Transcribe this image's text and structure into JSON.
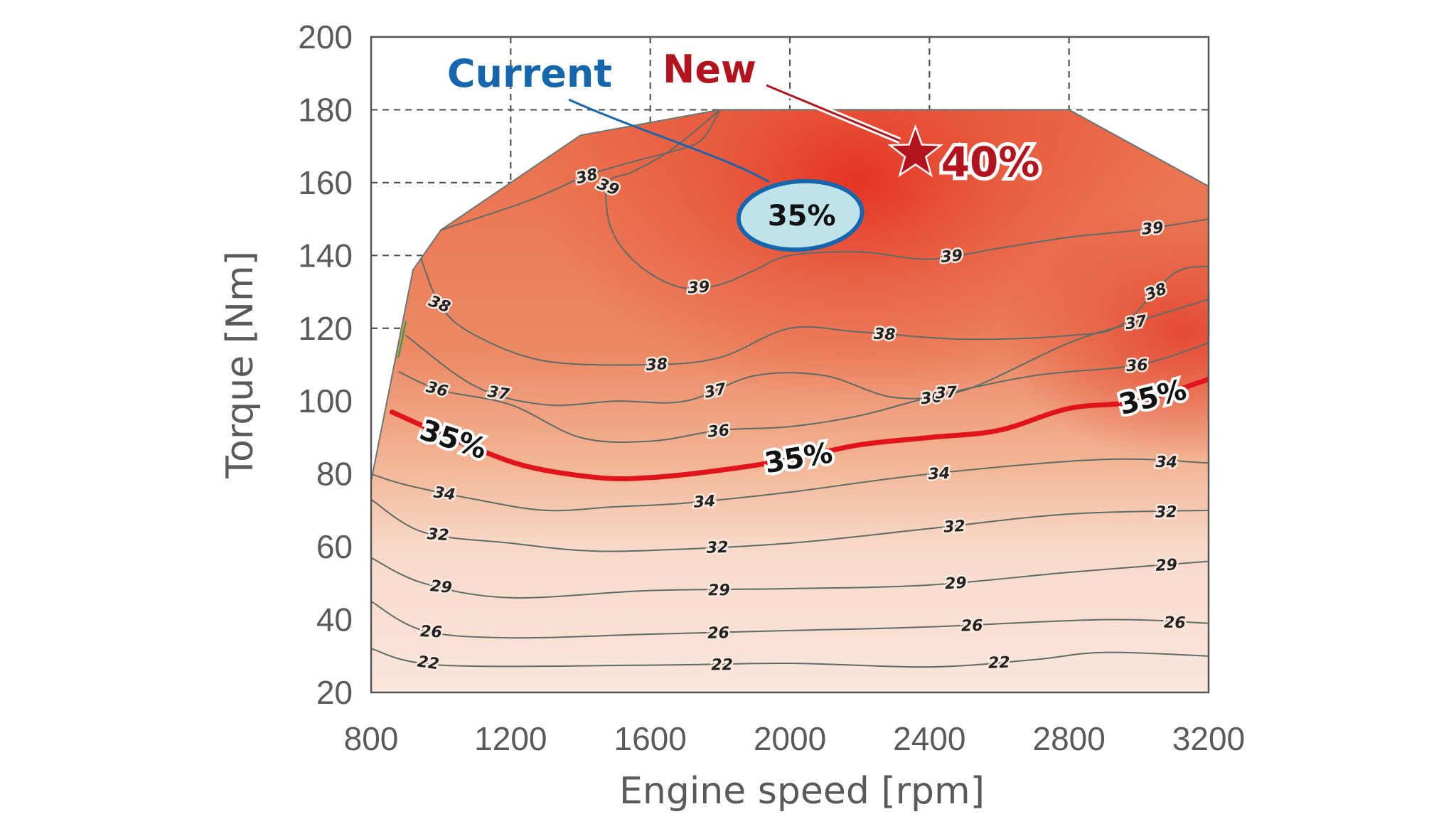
{
  "chart_data": {
    "type": "contour",
    "title": "",
    "xlabel": "Engine speed [rpm]",
    "ylabel": "Torque [Nm]",
    "xlim": [
      800,
      3200
    ],
    "ylim": [
      20,
      200
    ],
    "x_ticks": [
      "800",
      "1200",
      "1600",
      "2000",
      "2400",
      "2800",
      "3200"
    ],
    "y_ticks": [
      "20",
      "40",
      "60",
      "80",
      "100",
      "120",
      "140",
      "160",
      "180",
      "200"
    ],
    "operating_envelope": [
      [
        800,
        78
      ],
      [
        920,
        136
      ],
      [
        1000,
        147
      ],
      [
        1400,
        173
      ],
      [
        1800,
        180
      ],
      [
        2800,
        180
      ],
      [
        3200,
        159
      ],
      [
        3200,
        20
      ],
      [
        800,
        20
      ]
    ],
    "contours": [
      {
        "label": "22",
        "points": [
          [
            800,
            32
          ],
          [
            1000,
            27.5
          ],
          [
            1600,
            27.5
          ],
          [
            2000,
            28
          ],
          [
            2400,
            27
          ],
          [
            2700,
            29
          ],
          [
            2900,
            31
          ],
          [
            3200,
            30
          ]
        ]
      },
      {
        "label": "26",
        "points": [
          [
            800,
            45
          ],
          [
            950,
            37
          ],
          [
            1200,
            35
          ],
          [
            1600,
            36
          ],
          [
            2000,
            37
          ],
          [
            2400,
            38
          ],
          [
            2900,
            40
          ],
          [
            3200,
            39
          ]
        ]
      },
      {
        "label": "29",
        "points": [
          [
            800,
            57
          ],
          [
            950,
            50
          ],
          [
            1200,
            46
          ],
          [
            1600,
            48
          ],
          [
            2000,
            48.5
          ],
          [
            2400,
            49.5
          ],
          [
            2800,
            53
          ],
          [
            3200,
            56
          ]
        ]
      },
      {
        "label": "32",
        "points": [
          [
            800,
            73
          ],
          [
            950,
            64
          ],
          [
            1200,
            61
          ],
          [
            1400,
            59
          ],
          [
            1600,
            59
          ],
          [
            2000,
            61
          ],
          [
            2400,
            65
          ],
          [
            2800,
            69
          ],
          [
            3200,
            70
          ]
        ]
      },
      {
        "label": "34",
        "points": [
          [
            800,
            80
          ],
          [
            900,
            77
          ],
          [
            1100,
            73
          ],
          [
            1300,
            70
          ],
          [
            1500,
            71
          ],
          [
            1700,
            72
          ],
          [
            2000,
            75
          ],
          [
            2400,
            80
          ],
          [
            2900,
            84
          ],
          [
            3200,
            83
          ]
        ]
      },
      {
        "label": "35%",
        "highlight": true,
        "points": [
          [
            860,
            97
          ],
          [
            1000,
            91
          ],
          [
            1100,
            87
          ],
          [
            1250,
            82
          ],
          [
            1450,
            79
          ],
          [
            1600,
            79
          ],
          [
            1800,
            81
          ],
          [
            2000,
            84
          ],
          [
            2200,
            88
          ],
          [
            2400,
            90
          ],
          [
            2600,
            92
          ],
          [
            2800,
            98
          ],
          [
            3000,
            100
          ],
          [
            3200,
            106
          ]
        ]
      },
      {
        "label": "36",
        "points": [
          [
            880,
            108
          ],
          [
            1000,
            103
          ],
          [
            1200,
            99
          ],
          [
            1400,
            90
          ],
          [
            1600,
            89
          ],
          [
            1800,
            92
          ],
          [
            2000,
            93
          ],
          [
            2200,
            96
          ],
          [
            2400,
            101
          ],
          [
            2700,
            107
          ],
          [
            3000,
            110
          ],
          [
            3200,
            116
          ]
        ]
      },
      {
        "label": "37",
        "points": [
          [
            900,
            118
          ],
          [
            1100,
            104
          ],
          [
            1300,
            99
          ],
          [
            1500,
            100
          ],
          [
            1700,
            100
          ],
          [
            1900,
            107
          ],
          [
            2100,
            107
          ],
          [
            2300,
            101
          ],
          [
            2500,
            103
          ],
          [
            2800,
            116
          ],
          [
            3000,
            122
          ],
          [
            3200,
            128
          ]
        ]
      },
      {
        "label": "38",
        "points": [
          [
            940,
            140
          ],
          [
            1000,
            126
          ],
          [
            1100,
            118
          ],
          [
            1300,
            111
          ],
          [
            1600,
            110
          ],
          [
            1800,
            112
          ],
          [
            2000,
            120
          ],
          [
            2200,
            119
          ],
          [
            2500,
            117
          ],
          [
            2800,
            118
          ],
          [
            2950,
            121
          ],
          [
            3100,
            135
          ],
          [
            3200,
            137
          ]
        ]
      },
      {
        "label": "38",
        "points": [
          [
            1000,
            147
          ],
          [
            1250,
            155
          ],
          [
            1420,
            162
          ],
          [
            1560,
            166
          ],
          [
            1680,
            169
          ],
          [
            1750,
            172
          ],
          [
            1800,
            180
          ]
        ]
      },
      {
        "label": "39",
        "points": [
          [
            1800,
            180
          ],
          [
            1660,
            169
          ],
          [
            1550,
            163
          ],
          [
            1480,
            160
          ],
          [
            1480,
            150
          ],
          [
            1520,
            142
          ],
          [
            1600,
            135
          ],
          [
            1700,
            131
          ],
          [
            1800,
            132
          ],
          [
            1900,
            136
          ],
          [
            2000,
            140
          ],
          [
            2200,
            141
          ],
          [
            2400,
            139
          ],
          [
            2600,
            142
          ],
          [
            2800,
            145
          ],
          [
            3000,
            147
          ],
          [
            3200,
            150
          ]
        ]
      }
    ],
    "annotations": [
      {
        "type": "point",
        "label": "New",
        "value": "40%",
        "x": 2360,
        "y": 168
      },
      {
        "type": "region",
        "label": "Current",
        "value": "35%",
        "x": 2030,
        "y": 151
      }
    ],
    "colors": {
      "fill_dark": "#e6382a",
      "fill_mid": "#ea7a58",
      "fill_light": "#f8e0d4",
      "contour_line": "#5f6b66",
      "highlight_line": "#e0141a",
      "current": "#1666ad",
      "current_fill": "#bfe3ea",
      "new": "#b3131d"
    }
  }
}
